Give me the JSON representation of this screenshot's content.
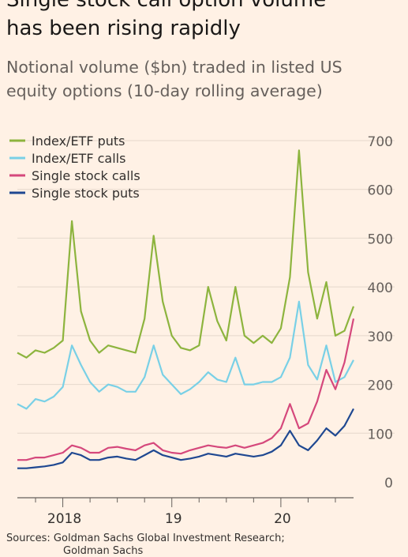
{
  "header": {
    "title_line1": "Single stock call option volume",
    "title_line2": "has been rising rapidly",
    "subtitle_line1": "Notional volume ($bn) traded in listed US",
    "subtitle_line2": "equity options (10-day rolling average)"
  },
  "footer": {
    "source": "Sources: Goldman Sachs Global Investment Research;",
    "source_cont": "Goldman Sachs"
  },
  "chart_data": {
    "type": "line",
    "x_range": [
      "2017-08",
      "2020-09"
    ],
    "x_ticks": [
      {
        "label": "2018",
        "date": "2018-01"
      },
      {
        "label": "19",
        "date": "2019-01"
      },
      {
        "label": "20",
        "date": "2020-01"
      }
    ],
    "ylim": [
      0,
      700
    ],
    "y_ticks": [
      0,
      100,
      200,
      300,
      400,
      500,
      600,
      700
    ],
    "y_axis_position": "right",
    "grid": true,
    "legend_position": "top-left",
    "x": [
      "2017-08",
      "2017-09",
      "2017-10",
      "2017-11",
      "2017-12",
      "2018-01",
      "2018-02",
      "2018-03",
      "2018-04",
      "2018-05",
      "2018-06",
      "2018-07",
      "2018-08",
      "2018-09",
      "2018-10",
      "2018-11",
      "2018-12",
      "2019-01",
      "2019-02",
      "2019-03",
      "2019-04",
      "2019-05",
      "2019-06",
      "2019-07",
      "2019-08",
      "2019-09",
      "2019-10",
      "2019-11",
      "2019-12",
      "2020-01",
      "2020-02",
      "2020-03",
      "2020-04",
      "2020-05",
      "2020-06",
      "2020-07",
      "2020-08",
      "2020-09"
    ],
    "series": [
      {
        "name": "Index/ETF puts",
        "color": "#8db43e",
        "values": [
          265,
          255,
          270,
          265,
          275,
          290,
          535,
          350,
          290,
          265,
          280,
          275,
          270,
          265,
          335,
          505,
          370,
          300,
          275,
          270,
          280,
          400,
          330,
          290,
          400,
          300,
          285,
          300,
          285,
          315,
          420,
          680,
          430,
          335,
          410,
          300,
          310,
          360
        ]
      },
      {
        "name": "Index/ETF calls",
        "color": "#79d0e6",
        "values": [
          160,
          150,
          170,
          165,
          175,
          195,
          280,
          240,
          205,
          185,
          200,
          195,
          185,
          185,
          215,
          280,
          220,
          200,
          180,
          190,
          205,
          225,
          210,
          205,
          255,
          200,
          200,
          205,
          205,
          215,
          255,
          370,
          240,
          210,
          280,
          205,
          215,
          250
        ]
      },
      {
        "name": "Single stock calls",
        "color": "#d5487c",
        "values": [
          45,
          45,
          50,
          50,
          55,
          60,
          75,
          70,
          60,
          60,
          70,
          72,
          68,
          65,
          75,
          80,
          65,
          60,
          58,
          65,
          70,
          75,
          72,
          70,
          75,
          70,
          75,
          80,
          90,
          110,
          160,
          110,
          120,
          165,
          230,
          190,
          245,
          335
        ]
      },
      {
        "name": "Single stock puts",
        "color": "#1f4891",
        "values": [
          28,
          28,
          30,
          32,
          35,
          40,
          60,
          55,
          45,
          45,
          50,
          52,
          48,
          45,
          55,
          65,
          55,
          50,
          45,
          48,
          52,
          58,
          55,
          52,
          58,
          55,
          52,
          55,
          62,
          75,
          105,
          75,
          65,
          85,
          110,
          95,
          115,
          150
        ]
      }
    ]
  }
}
